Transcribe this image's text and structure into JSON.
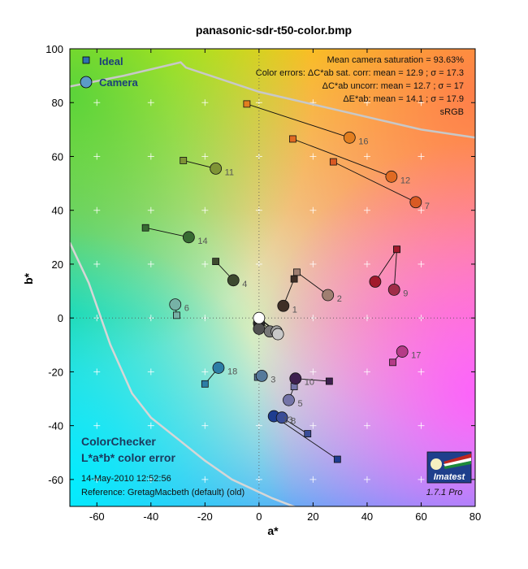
{
  "window": {
    "title": "panasonic-sdr-t50-color.bmp"
  },
  "chart_data": {
    "type": "scatter",
    "title": "panasonic-sdr-t50-color.bmp",
    "xlabel": "a*",
    "ylabel": "b*",
    "xlim": [
      -70,
      80
    ],
    "ylim": [
      -70,
      100
    ],
    "xticks": [
      -60,
      -40,
      -20,
      0,
      20,
      40,
      60,
      80
    ],
    "yticks": [
      -60,
      -40,
      -20,
      0,
      20,
      40,
      60,
      80,
      100
    ],
    "grid": true,
    "legend": {
      "placement": "top-left",
      "entries": [
        {
          "label": "Ideal",
          "marker": "square",
          "color": "#2f6fb0"
        },
        {
          "label": "Camera",
          "marker": "circle",
          "color": "#5b9bc6"
        }
      ]
    },
    "stats": {
      "line1": "Mean camera saturation = 93.63%",
      "line2": "Color errors: ΔC*ab sat. corr:  mean = 12.9 ;  σ = 17.3",
      "line3": "ΔC*ab uncorr:  mean = 12.7 ;  σ = 17",
      "line4": "ΔE*ab:  mean = 14.1 ;  σ = 17.9",
      "line5": "sRGB"
    },
    "bottom_text": {
      "name": "ColorChecker",
      "subtitle": "L*a*b* color error",
      "date": "14-May-2010 12:52:56",
      "reference": "Reference: GretagMacbeth (default) (old)"
    },
    "logo": {
      "text": "Imatest",
      "version": "1.7.1  Pro"
    },
    "patches": [
      {
        "id": "1",
        "ideal": [
          13,
          14.5
        ],
        "camera": [
          9,
          4.5
        ],
        "color": "#3f2f26"
      },
      {
        "id": "2",
        "ideal": [
          14,
          17
        ],
        "camera": [
          25.5,
          8.5
        ],
        "color": "#a07f71"
      },
      {
        "id": "3",
        "ideal": [
          -0.5,
          -22
        ],
        "camera": [
          1,
          -21.5
        ],
        "color": "#557a9b"
      },
      {
        "id": "4",
        "ideal": [
          -16,
          21
        ],
        "camera": [
          -9.5,
          14
        ],
        "color": "#3d4a2f"
      },
      {
        "id": "5",
        "ideal": [
          13,
          -25.5
        ],
        "camera": [
          11,
          -30.5
        ],
        "color": "#7474a8"
      },
      {
        "id": "6",
        "ideal": [
          -30.5,
          1
        ],
        "camera": [
          -31,
          5
        ],
        "color": "#76b2a6"
      },
      {
        "id": "7",
        "ideal": [
          27.5,
          58
        ],
        "camera": [
          58,
          43
        ],
        "color": "#d95a24"
      },
      {
        "id": "8",
        "ideal": [
          18,
          -43
        ],
        "camera": [
          8.5,
          -37
        ],
        "color": "#3a4d98"
      },
      {
        "id": "9",
        "ideal": [
          51,
          25.5
        ],
        "camera": [
          50,
          10.5
        ],
        "color": "#a02d48"
      },
      {
        "id": "10",
        "ideal": [
          26,
          -23.5
        ],
        "camera": [
          13.5,
          -22.5
        ],
        "color": "#3e204f"
      },
      {
        "id": "11",
        "ideal": [
          -28,
          58.5
        ],
        "camera": [
          -16,
          55.5
        ],
        "color": "#7f9436"
      },
      {
        "id": "12",
        "ideal": [
          12.5,
          66.5
        ],
        "camera": [
          49,
          52.5
        ],
        "color": "#e06a22"
      },
      {
        "id": "13",
        "ideal": [
          29,
          -52.5
        ],
        "camera": [
          5.5,
          -36.5
        ],
        "color": "#1e3d90"
      },
      {
        "id": "14",
        "ideal": [
          -42,
          33.5
        ],
        "camera": [
          -26,
          30
        ],
        "color": "#376b33"
      },
      {
        "id": "15",
        "ideal": [
          51,
          25.5
        ],
        "camera": [
          43,
          13.5
        ],
        "color": "#a21a2c"
      },
      {
        "id": "16",
        "ideal": [
          -4.5,
          79.5
        ],
        "camera": [
          33.5,
          67
        ],
        "color": "#e27e1f"
      },
      {
        "id": "17",
        "ideal": [
          49.5,
          -16.5
        ],
        "camera": [
          53,
          -12.5
        ],
        "color": "#b53b87"
      },
      {
        "id": "18",
        "ideal": [
          -20,
          -24.5
        ],
        "camera": [
          -15,
          -18.5
        ],
        "color": "#2d7ea6"
      },
      {
        "id": "19",
        "ideal": [
          0,
          0
        ],
        "camera": [
          0,
          0
        ],
        "color": "#ffffff"
      },
      {
        "id": "20",
        "ideal": [
          0,
          0
        ],
        "camera": [
          7,
          -6
        ],
        "color": "#c8c8c8"
      },
      {
        "id": "21",
        "ideal": [
          0,
          0
        ],
        "camera": [
          6.5,
          -5
        ],
        "color": "#a0a0a0"
      },
      {
        "id": "22",
        "ideal": [
          0,
          0
        ],
        "camera": [
          4,
          -5
        ],
        "color": "#787878"
      },
      {
        "id": "23",
        "ideal": [
          0,
          0
        ],
        "camera": [
          0,
          -4
        ],
        "color": "#515151"
      },
      {
        "id": "24",
        "ideal": [
          0,
          0
        ],
        "camera": [
          0,
          -2
        ],
        "color": "#2b2b2b"
      }
    ],
    "labeled_ids": [
      "1",
      "2",
      "3",
      "4",
      "5",
      "6",
      "7",
      "8",
      "9",
      "10",
      "11",
      "12",
      "13",
      "14",
      "16",
      "17",
      "18"
    ],
    "gamut_boundary": [
      [
        -70,
        86
      ],
      [
        -50,
        90
      ],
      [
        -29,
        95
      ],
      [
        -27,
        93
      ],
      [
        0,
        84
      ],
      [
        30,
        77
      ],
      [
        60,
        70
      ],
      [
        80,
        67
      ]
    ],
    "gamut_boundary_left": [
      [
        -70,
        28
      ],
      [
        -63,
        13
      ],
      [
        -55,
        -10
      ],
      [
        -47,
        -28
      ],
      [
        -40,
        -37
      ],
      [
        -30,
        -45
      ],
      [
        -20,
        -53
      ],
      [
        -10,
        -60
      ],
      [
        5,
        -67
      ],
      [
        18,
        -72
      ]
    ]
  }
}
